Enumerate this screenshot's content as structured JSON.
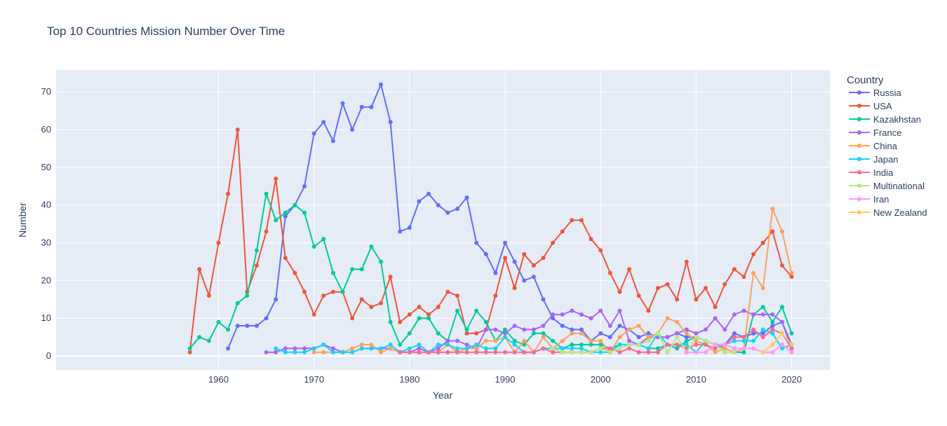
{
  "chart_data": {
    "type": "line",
    "title": "Top 10 Countries Mission Number Over Time",
    "xlabel": "Year",
    "ylabel": "Number",
    "xlim": [
      1943,
      2024
    ],
    "ylim": [
      -3.7,
      75.8
    ],
    "x_ticks": [
      1960,
      1970,
      1980,
      1990,
      2000,
      2010,
      2020
    ],
    "y_ticks": [
      0,
      10,
      20,
      30,
      40,
      50,
      60,
      70
    ],
    "grid": true,
    "legend_title": "Country",
    "legend_position": "right",
    "series": [
      {
        "name": "Russia",
        "color": "#636efa",
        "x": [
          1961,
          1962,
          1963,
          1964,
          1965,
          1966,
          1967,
          1968,
          1969,
          1970,
          1971,
          1972,
          1973,
          1974,
          1975,
          1976,
          1977,
          1978,
          1979,
          1980,
          1981,
          1982,
          1983,
          1984,
          1985,
          1986,
          1987,
          1988,
          1989,
          1990,
          1991,
          1992,
          1993,
          1994,
          1995,
          1996,
          1997,
          1998,
          1999,
          2000,
          2001,
          2002,
          2003,
          2004,
          2005,
          2006,
          2007,
          2008,
          2009,
          2010,
          2011,
          2012,
          2013,
          2014,
          2015,
          2016,
          2017,
          2018,
          2019,
          2020
        ],
        "y": [
          2,
          8,
          8,
          8,
          10,
          15,
          37,
          40,
          45,
          59,
          62,
          57,
          67,
          60,
          66,
          66,
          72,
          62,
          33,
          34,
          41,
          43,
          40,
          38,
          39,
          42,
          30,
          27,
          22,
          30,
          25,
          20,
          21,
          15,
          10,
          8,
          7,
          7,
          4,
          6,
          5,
          8,
          7,
          5,
          6,
          5,
          5,
          6,
          5,
          5,
          4,
          3,
          3,
          6,
          5,
          6,
          6,
          8,
          9,
          3
        ]
      },
      {
        "name": "USA",
        "color": "#ef553b",
        "x": [
          1957,
          1958,
          1959,
          1960,
          1961,
          1962,
          1963,
          1964,
          1965,
          1966,
          1967,
          1968,
          1969,
          1970,
          1971,
          1972,
          1973,
          1974,
          1975,
          1976,
          1977,
          1978,
          1979,
          1980,
          1981,
          1982,
          1983,
          1984,
          1985,
          1986,
          1987,
          1988,
          1989,
          1990,
          1991,
          1992,
          1993,
          1994,
          1995,
          1996,
          1997,
          1998,
          1999,
          2000,
          2001,
          2002,
          2003,
          2004,
          2005,
          2006,
          2007,
          2008,
          2009,
          2010,
          2011,
          2012,
          2013,
          2014,
          2015,
          2016,
          2017,
          2018,
          2019,
          2020
        ],
        "y": [
          1,
          23,
          16,
          30,
          43,
          60,
          17,
          24,
          33,
          47,
          26,
          22,
          17,
          11,
          16,
          17,
          17,
          10,
          15,
          13,
          14,
          21,
          9,
          11,
          13,
          11,
          13,
          17,
          16,
          6,
          6,
          7,
          16,
          26,
          18,
          27,
          24,
          26,
          30,
          33,
          36,
          36,
          31,
          28,
          22,
          17,
          23,
          16,
          12,
          18,
          19,
          15,
          25,
          15,
          18,
          13,
          19,
          23,
          21,
          27,
          30,
          33,
          24,
          21
        ]
      },
      {
        "name": "Kazakhstan",
        "color": "#00cc96",
        "x": [
          1957,
          1958,
          1959,
          1960,
          1961,
          1962,
          1963,
          1964,
          1965,
          1966,
          1967,
          1968,
          1969,
          1970,
          1971,
          1972,
          1973,
          1974,
          1975,
          1976,
          1977,
          1978,
          1979,
          1980,
          1981,
          1982,
          1983,
          1984,
          1985,
          1986,
          1987,
          1988,
          1989,
          1990,
          1991,
          1992,
          1993,
          1994,
          1995,
          1996,
          1997,
          1998,
          1999,
          2000,
          2001,
          2002,
          2003,
          2004,
          2005,
          2006,
          2007,
          2008,
          2009,
          2010,
          2011,
          2012,
          2013,
          2014,
          2015,
          2016,
          2017,
          2018,
          2019,
          2020
        ],
        "y": [
          2,
          5,
          4,
          9,
          7,
          14,
          16,
          28,
          43,
          36,
          38,
          40,
          38,
          29,
          31,
          22,
          17,
          23,
          23,
          29,
          25,
          9,
          3,
          6,
          10,
          10,
          6,
          4,
          12,
          7,
          12,
          9,
          4,
          7,
          4,
          3,
          6,
          6,
          4,
          2,
          3,
          3,
          3,
          3,
          2,
          3,
          3,
          3,
          2,
          2,
          3,
          2,
          4,
          5,
          4,
          3,
          2,
          1,
          1,
          11,
          13,
          9,
          13,
          6
        ]
      },
      {
        "name": "France",
        "color": "#ab63fa",
        "x": [
          1965,
          1966,
          1967,
          1968,
          1969,
          1970,
          1971,
          1972,
          1973,
          1974,
          1975,
          1976,
          1977,
          1978,
          1979,
          1980,
          1981,
          1982,
          1983,
          1984,
          1985,
          1986,
          1987,
          1988,
          1989,
          1990,
          1991,
          1992,
          1993,
          1994,
          1995,
          1996,
          1997,
          1998,
          1999,
          2000,
          2001,
          2002,
          2003,
          2004,
          2005,
          2006,
          2007,
          2008,
          2009,
          2010,
          2011,
          2012,
          2013,
          2014,
          2015,
          2016,
          2017,
          2018,
          2019,
          2020
        ],
        "y": [
          1,
          1,
          2,
          2,
          2,
          2,
          3,
          2,
          1,
          1,
          2,
          2,
          2,
          2,
          1,
          1,
          2,
          1,
          2,
          4,
          4,
          3,
          2,
          7,
          7,
          6,
          8,
          7,
          7,
          8,
          11,
          11,
          12,
          11,
          10,
          12,
          8,
          12,
          4,
          3,
          5,
          5,
          5,
          6,
          7,
          6,
          7,
          10,
          7,
          11,
          12,
          11,
          11,
          11,
          9,
          2
        ]
      },
      {
        "name": "China",
        "color": "#ffa15a",
        "x": [
          1970,
          1971,
          1972,
          1973,
          1974,
          1975,
          1976,
          1977,
          1978,
          1979,
          1980,
          1981,
          1982,
          1983,
          1984,
          1985,
          1986,
          1987,
          1988,
          1989,
          1990,
          1991,
          1992,
          1993,
          1994,
          1995,
          1996,
          1997,
          1998,
          1999,
          2000,
          2001,
          2002,
          2003,
          2004,
          2005,
          2006,
          2007,
          2008,
          2009,
          2010,
          2011,
          2012,
          2013,
          2014,
          2015,
          2016,
          2017,
          2018,
          2019,
          2020
        ],
        "y": [
          1,
          1,
          1,
          1,
          2,
          3,
          3,
          1,
          2,
          1,
          1,
          1,
          1,
          1,
          3,
          1,
          2,
          2,
          4,
          4,
          5,
          1,
          4,
          1,
          5,
          2,
          4,
          6,
          6,
          4,
          4,
          1,
          5,
          7,
          8,
          5,
          6,
          10,
          9,
          6,
          4,
          3,
          1,
          2,
          1,
          2,
          22,
          18,
          39,
          33,
          22
        ]
      },
      {
        "name": "Japan",
        "color": "#19d3f3",
        "x": [
          1966,
          1967,
          1968,
          1969,
          1970,
          1971,
          1972,
          1973,
          1974,
          1975,
          1976,
          1977,
          1978,
          1979,
          1980,
          1981,
          1982,
          1983,
          1984,
          1985,
          1986,
          1987,
          1988,
          1989,
          1990,
          1991,
          1992,
          1993,
          1994,
          1995,
          1996,
          1997,
          1998,
          1999,
          2000,
          2001,
          2002,
          2003,
          2004,
          2005,
          2006,
          2007,
          2008,
          2009,
          2010,
          2011,
          2012,
          2013,
          2014,
          2015,
          2016,
          2017,
          2018,
          2019,
          2020
        ],
        "y": [
          2,
          1,
          1,
          1,
          2,
          3,
          1,
          1,
          1,
          2,
          2,
          2,
          3,
          1,
          2,
          3,
          1,
          3,
          3,
          2,
          2,
          3,
          2,
          2,
          5,
          3,
          1,
          1,
          2,
          2,
          2,
          2,
          2,
          1,
          1,
          1,
          3,
          3,
          3,
          2,
          6,
          3,
          3,
          3,
          1,
          4,
          3,
          3,
          4,
          4,
          4,
          7,
          6,
          2,
          3
        ]
      },
      {
        "name": "India",
        "color": "#ff6692",
        "x": [
          1979,
          1980,
          1981,
          1982,
          1983,
          1984,
          1985,
          1986,
          1987,
          1988,
          1989,
          1990,
          1991,
          1992,
          1993,
          1994,
          1995,
          1996,
          1997,
          1998,
          1999,
          2000,
          2001,
          2002,
          2003,
          2004,
          2005,
          2006,
          2007,
          2008,
          2009,
          2010,
          2011,
          2012,
          2013,
          2014,
          2015,
          2016,
          2017,
          2018,
          2019,
          2020
        ],
        "y": [
          1,
          1,
          1,
          1,
          1,
          1,
          1,
          1,
          1,
          1,
          1,
          1,
          1,
          1,
          1,
          2,
          1,
          1,
          1,
          1,
          1,
          2,
          2,
          1,
          2,
          1,
          1,
          1,
          3,
          3,
          2,
          3,
          3,
          2,
          3,
          5,
          5,
          7,
          5,
          7,
          6,
          2
        ]
      },
      {
        "name": "Multinational",
        "color": "#b6e880",
        "x": [
          1995,
          1996,
          1997,
          1998,
          1999,
          2000,
          2001,
          2002,
          2003,
          2004,
          2005,
          2006,
          2007,
          2008,
          2009,
          2010,
          2011,
          2012,
          2013,
          2014
        ],
        "y": [
          2,
          1,
          1,
          1,
          1,
          2,
          1,
          2,
          3,
          3,
          4,
          6,
          1,
          5,
          1,
          5,
          4,
          3,
          1,
          1
        ]
      },
      {
        "name": "Iran",
        "color": "#ff97ff",
        "x": [
          2009,
          2010,
          2011,
          2012,
          2013,
          2014,
          2015,
          2016,
          2017,
          2018,
          2019,
          2020
        ],
        "y": [
          1,
          1,
          1,
          3,
          3,
          2,
          2,
          2,
          1,
          1,
          3,
          1
        ]
      },
      {
        "name": "New Zealand",
        "color": "#fecb52",
        "x": [
          2017,
          2018,
          2019,
          2020
        ],
        "y": [
          1,
          3,
          6,
          3
        ]
      }
    ]
  }
}
